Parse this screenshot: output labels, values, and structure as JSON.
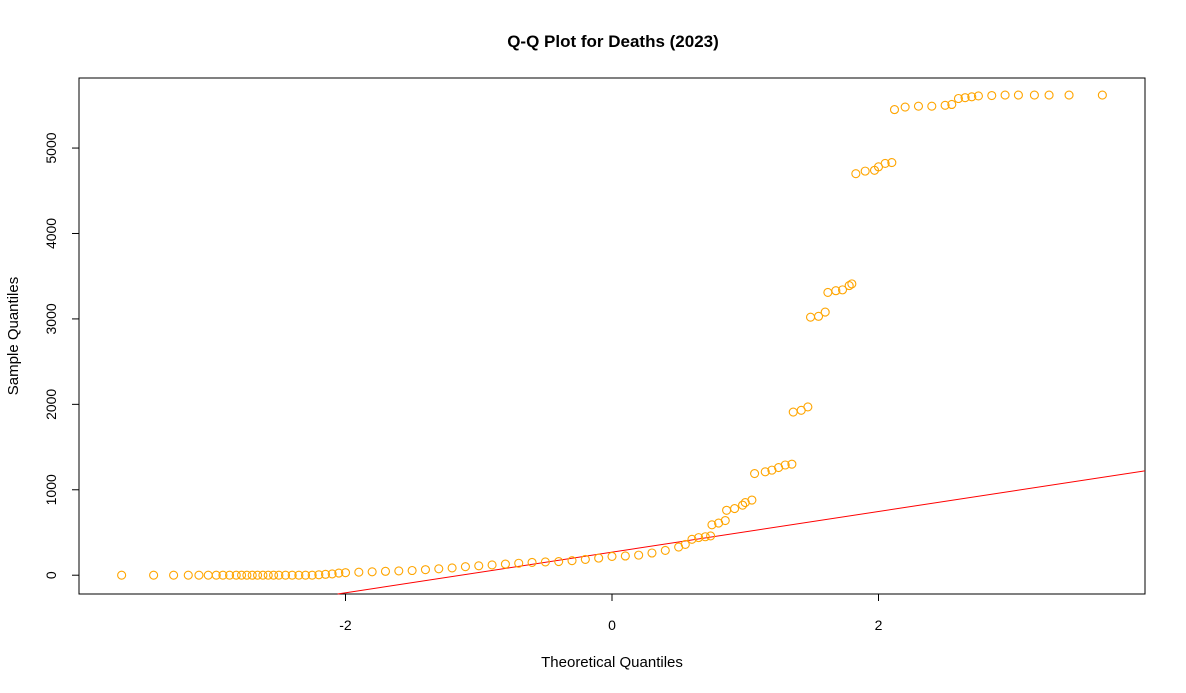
{
  "chart_data": {
    "type": "scatter",
    "title": "Q-Q Plot for Deaths (2023)",
    "xlabel": "Theoretical Quantiles",
    "ylabel": "Sample Quantiles",
    "xlim": [
      -4.0,
      4.0
    ],
    "ylim": [
      -220,
      5820
    ],
    "x_ticks": [
      -2,
      0,
      2
    ],
    "y_ticks": [
      0,
      1000,
      2000,
      3000,
      4000,
      5000
    ],
    "grid": false,
    "legend": "none",
    "point_color": "#FFA500",
    "line_color": "#FF0000",
    "reference_line": {
      "intercept": 270,
      "slope": 238
    },
    "points": [
      [
        -3.68,
        0
      ],
      [
        -3.44,
        0
      ],
      [
        -3.29,
        0
      ],
      [
        -3.18,
        0
      ],
      [
        -3.1,
        0
      ],
      [
        -3.03,
        0
      ],
      [
        -2.97,
        0
      ],
      [
        -2.92,
        0
      ],
      [
        -2.87,
        0
      ],
      [
        -2.82,
        0
      ],
      [
        -2.78,
        0
      ],
      [
        -2.74,
        0
      ],
      [
        -2.7,
        0
      ],
      [
        -2.66,
        0
      ],
      [
        -2.62,
        0
      ],
      [
        -2.58,
        0
      ],
      [
        -2.54,
        0
      ],
      [
        -2.5,
        0
      ],
      [
        -2.45,
        0
      ],
      [
        -2.4,
        0
      ],
      [
        -2.35,
        0
      ],
      [
        -2.3,
        0
      ],
      [
        -2.25,
        0
      ],
      [
        -2.2,
        5
      ],
      [
        -2.15,
        10
      ],
      [
        -2.1,
        15
      ],
      [
        -2.05,
        25
      ],
      [
        -2.0,
        30
      ],
      [
        -1.9,
        35
      ],
      [
        -1.8,
        40
      ],
      [
        -1.7,
        45
      ],
      [
        -1.6,
        50
      ],
      [
        -1.5,
        55
      ],
      [
        -1.4,
        65
      ],
      [
        -1.3,
        75
      ],
      [
        -1.2,
        85
      ],
      [
        -1.1,
        100
      ],
      [
        -1.0,
        110
      ],
      [
        -0.9,
        120
      ],
      [
        -0.8,
        130
      ],
      [
        -0.7,
        140
      ],
      [
        -0.6,
        150
      ],
      [
        -0.5,
        155
      ],
      [
        -0.4,
        160
      ],
      [
        -0.3,
        170
      ],
      [
        -0.2,
        185
      ],
      [
        -0.1,
        200
      ],
      [
        0.0,
        220
      ],
      [
        0.1,
        225
      ],
      [
        0.2,
        235
      ],
      [
        0.3,
        260
      ],
      [
        0.4,
        290
      ],
      [
        0.5,
        330
      ],
      [
        0.55,
        360
      ],
      [
        0.6,
        420
      ],
      [
        0.65,
        440
      ],
      [
        0.7,
        450
      ],
      [
        0.74,
        460
      ],
      [
        0.75,
        590
      ],
      [
        0.8,
        610
      ],
      [
        0.85,
        640
      ],
      [
        0.86,
        760
      ],
      [
        0.92,
        780
      ],
      [
        0.98,
        820
      ],
      [
        1.0,
        850
      ],
      [
        1.05,
        880
      ],
      [
        1.07,
        1190
      ],
      [
        1.15,
        1210
      ],
      [
        1.2,
        1230
      ],
      [
        1.25,
        1260
      ],
      [
        1.3,
        1290
      ],
      [
        1.35,
        1300
      ],
      [
        1.36,
        1910
      ],
      [
        1.42,
        1930
      ],
      [
        1.47,
        1970
      ],
      [
        1.49,
        3020
      ],
      [
        1.55,
        3030
      ],
      [
        1.6,
        3080
      ],
      [
        1.62,
        3310
      ],
      [
        1.68,
        3330
      ],
      [
        1.73,
        3340
      ],
      [
        1.78,
        3390
      ],
      [
        1.8,
        3410
      ],
      [
        1.83,
        4700
      ],
      [
        1.9,
        4730
      ],
      [
        1.97,
        4740
      ],
      [
        2.0,
        4780
      ],
      [
        2.05,
        4820
      ],
      [
        2.1,
        4830
      ],
      [
        2.12,
        5450
      ],
      [
        2.2,
        5480
      ],
      [
        2.3,
        5490
      ],
      [
        2.4,
        5490
      ],
      [
        2.5,
        5500
      ],
      [
        2.55,
        5510
      ],
      [
        2.6,
        5580
      ],
      [
        2.65,
        5590
      ],
      [
        2.7,
        5600
      ],
      [
        2.75,
        5610
      ],
      [
        2.85,
        5615
      ],
      [
        2.95,
        5620
      ],
      [
        3.05,
        5620
      ],
      [
        3.17,
        5620
      ],
      [
        3.28,
        5620
      ],
      [
        3.43,
        5620
      ],
      [
        3.68,
        5620
      ]
    ]
  }
}
